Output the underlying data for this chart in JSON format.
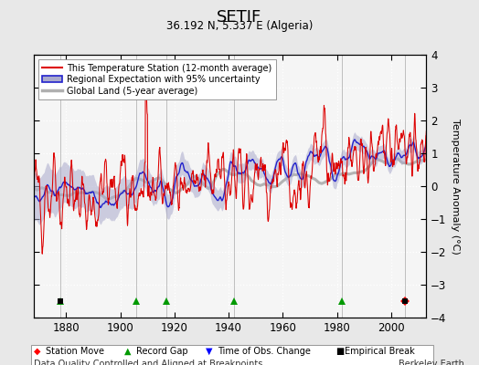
{
  "title": "SETIF",
  "subtitle": "36.192 N, 5.337 E (Algeria)",
  "ylabel": "Temperature Anomaly (°C)",
  "xlabel_note": "Data Quality Controlled and Aligned at Breakpoints",
  "credit": "Berkeley Earth",
  "year_start": 1868,
  "year_end": 2013,
  "ylim": [
    -4,
    4
  ],
  "yticks": [
    -4,
    -3,
    -2,
    -1,
    0,
    1,
    2,
    3,
    4
  ],
  "xticks": [
    1880,
    1900,
    1920,
    1940,
    1960,
    1980,
    2000
  ],
  "bg_color": "#e8e8e8",
  "plot_bg_color": "#f5f5f5",
  "station_color": "#dd0000",
  "regional_color": "#2222cc",
  "regional_fill": "#aaaacc",
  "global_color": "#b0b0b0",
  "markers": {
    "station_moves": [
      2005
    ],
    "record_gaps": [
      1878,
      1906,
      1917,
      1942,
      1982
    ],
    "time_obs_changes": [],
    "empirical_breaks": [
      1878,
      2005
    ]
  },
  "seed": 12345
}
